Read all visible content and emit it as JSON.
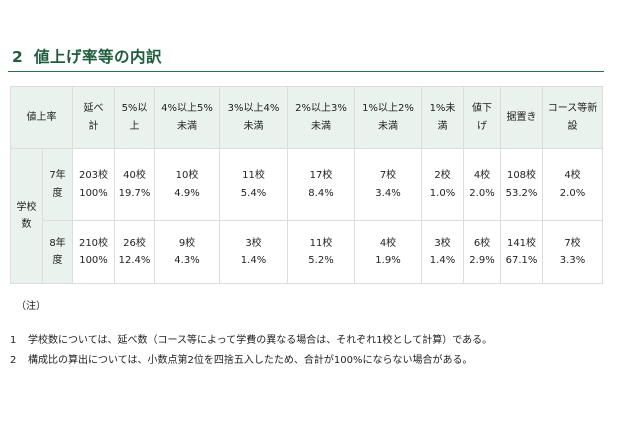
{
  "heading": {
    "number": "2",
    "title": "値上げ率等の内訳"
  },
  "table": {
    "header": {
      "label": "値上率",
      "columns": [
        [
          "延べ",
          "計"
        ],
        [
          "5%以",
          "上"
        ],
        [
          "4%以上5%",
          "未満"
        ],
        [
          "3%以上4%",
          "未満"
        ],
        [
          "2%以上3%",
          "未満"
        ],
        [
          "1%以上2%",
          "未満"
        ],
        [
          "1%未",
          "満"
        ],
        [
          "値下",
          "げ"
        ],
        [
          "据置き"
        ],
        [
          "コース等新",
          "設"
        ]
      ]
    },
    "side_label": [
      "学校",
      "数"
    ],
    "rows": [
      {
        "year": [
          "7年",
          "度"
        ],
        "cells": [
          [
            "203校",
            "100%"
          ],
          [
            "40校",
            "19.7%"
          ],
          [
            "10校",
            "4.9%"
          ],
          [
            "11校",
            "5.4%"
          ],
          [
            "17校",
            "8.4%"
          ],
          [
            "7校",
            "3.4%"
          ],
          [
            "2校",
            "1.0%"
          ],
          [
            "4校",
            "2.0%"
          ],
          [
            "108校",
            "53.2%"
          ],
          [
            "4校",
            "2.0%"
          ]
        ]
      },
      {
        "year": [
          "8年",
          "度"
        ],
        "cells": [
          [
            "210校",
            "100%"
          ],
          [
            "26校",
            "12.4%"
          ],
          [
            "9校",
            "4.3%"
          ],
          [
            "3校",
            "1.4%"
          ],
          [
            "11校",
            "5.2%"
          ],
          [
            "4校",
            "1.9%"
          ],
          [
            "3校",
            "1.4%"
          ],
          [
            "6校",
            "2.9%"
          ],
          [
            "141校",
            "67.1%"
          ],
          [
            "7校",
            "3.3%"
          ]
        ]
      }
    ]
  },
  "notes": {
    "heading": "（注）",
    "items": [
      {
        "num": "1",
        "text": "学校数については、延べ数（コース等によって学費の異なる場合は、それぞれ1校として計算）である。"
      },
      {
        "num": "2",
        "text": "構成比の算出については、小数点第2位を四捨五入したため、合計が100%にならない場合がある。"
      }
    ]
  }
}
